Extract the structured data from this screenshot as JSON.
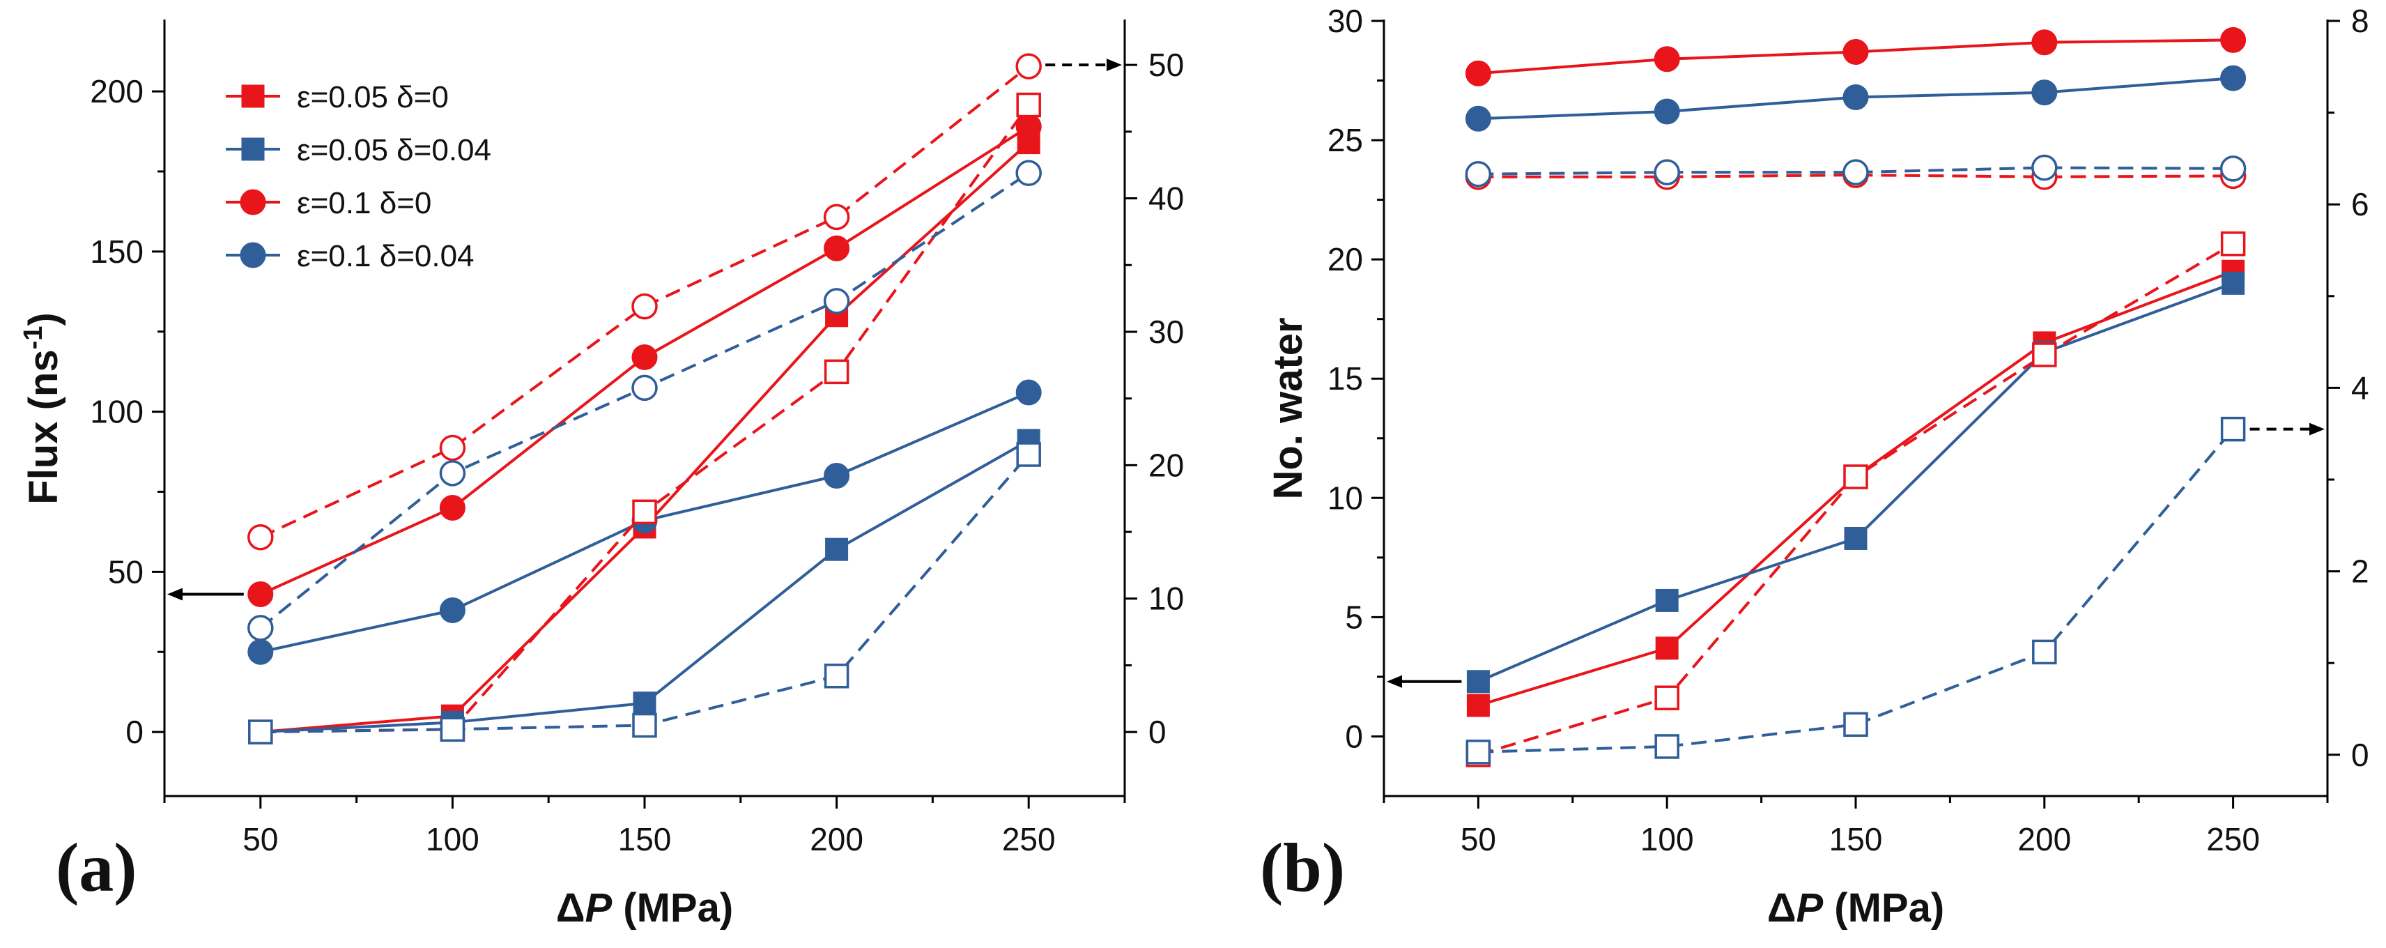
{
  "figure": {
    "colors": {
      "red": "#e8151b",
      "blue": "#2f5e99",
      "axis": "#000000"
    }
  },
  "chart_data": [
    {
      "type": "line",
      "panel_label": "(a)",
      "title": "",
      "xlabel": "ΔP (MPa)",
      "xlabel_parts": {
        "delta": "Δ",
        "var": "P",
        "unit": " (MPa)"
      },
      "ylabel": "Flux (ns-1)",
      "ylabel_parts": {
        "base": "Flux (ns",
        "sup": "-1",
        "close": ")"
      },
      "xlim": [
        25,
        275
      ],
      "ylim": [
        -20,
        222
      ],
      "y2lim": [
        -4.8,
        53.3
      ],
      "xticks": [
        "50",
        "100",
        "150",
        "200",
        "250"
      ],
      "yticks": [
        "0",
        "50",
        "100",
        "150",
        "200"
      ],
      "y2ticks": [
        "0",
        "10",
        "20",
        "30",
        "40",
        "50"
      ],
      "legend_position": "top-left",
      "legend": [
        "ε=0.05 δ=0",
        "ε=0.05 δ=0.04",
        "ε=0.1 δ=0",
        "ε=0.1 δ=0.04"
      ],
      "left_axis_arrow_at": 43,
      "right_axis_arrow_at": 50,
      "series": [
        {
          "name": "ε=0.05 δ=0",
          "color": "red",
          "marker": "square",
          "filled": true,
          "axis": "left",
          "x": [
            50,
            100,
            150,
            200,
            250
          ],
          "values": [
            0,
            5,
            64,
            130,
            184
          ]
        },
        {
          "name": "ε=0.05 δ=0.04",
          "color": "blue",
          "marker": "square",
          "filled": true,
          "axis": "left",
          "x": [
            50,
            100,
            150,
            200,
            250
          ],
          "values": [
            0,
            3,
            9,
            57,
            91
          ]
        },
        {
          "name": "ε=0.1 δ=0",
          "color": "red",
          "marker": "circle",
          "filled": true,
          "axis": "left",
          "x": [
            50,
            100,
            150,
            200,
            250
          ],
          "values": [
            43,
            70,
            117,
            151,
            189
          ]
        },
        {
          "name": "ε=0.1 δ=0.04",
          "color": "blue",
          "marker": "circle",
          "filled": true,
          "axis": "left",
          "x": [
            50,
            100,
            150,
            200,
            250
          ],
          "values": [
            25,
            38,
            66,
            80,
            106
          ]
        },
        {
          "name": "ε=0.05 δ=0 (right)",
          "color": "red",
          "marker": "square",
          "filled": false,
          "axis": "right",
          "x": [
            50,
            100,
            150,
            200,
            250
          ],
          "values": [
            0,
            0.2,
            16.5,
            27,
            47
          ]
        },
        {
          "name": "ε=0.05 δ=0.04 (right)",
          "color": "blue",
          "marker": "square",
          "filled": false,
          "axis": "right",
          "x": [
            50,
            100,
            150,
            200,
            250
          ],
          "values": [
            0,
            0.2,
            0.5,
            4.2,
            20.8
          ]
        },
        {
          "name": "ε=0.1 δ=0 (right)",
          "color": "red",
          "marker": "circle",
          "filled": false,
          "axis": "right",
          "x": [
            50,
            100,
            150,
            200,
            250
          ],
          "values": [
            14.6,
            21.3,
            31.9,
            38.6,
            49.9
          ]
        },
        {
          "name": "ε=0.1 δ=0.04 (right)",
          "color": "blue",
          "marker": "circle",
          "filled": false,
          "axis": "right",
          "x": [
            50,
            100,
            150,
            200,
            250
          ],
          "values": [
            7.8,
            19.4,
            25.8,
            32.3,
            41.9
          ]
        }
      ]
    },
    {
      "type": "line",
      "panel_label": "(b)",
      "title": "",
      "xlabel": "ΔP (MPa)",
      "xlabel_parts": {
        "delta": "Δ",
        "var": "P",
        "unit": " (MPa)"
      },
      "ylabel": "No. water",
      "xlim": [
        25,
        275
      ],
      "ylim": [
        -2.5,
        30
      ],
      "y2lim": [
        -0.45,
        8
      ],
      "xticks": [
        "50",
        "100",
        "150",
        "200",
        "250"
      ],
      "yticks": [
        "0",
        "5",
        "10",
        "15",
        "20",
        "25",
        "30"
      ],
      "y2ticks": [
        "0",
        "2",
        "4",
        "6",
        "8"
      ],
      "left_axis_arrow_at": 2.3,
      "right_axis_arrow_at": 3.55,
      "series": [
        {
          "name": "ε=0.05 δ=0",
          "color": "red",
          "marker": "square",
          "filled": true,
          "axis": "left",
          "x": [
            50,
            100,
            150,
            200,
            250
          ],
          "values": [
            1.3,
            3.7,
            10.9,
            16.5,
            19.5
          ]
        },
        {
          "name": "ε=0.05 δ=0.04",
          "color": "blue",
          "marker": "square",
          "filled": true,
          "axis": "left",
          "x": [
            50,
            100,
            150,
            200,
            250
          ],
          "values": [
            2.3,
            5.7,
            8.3,
            16.1,
            19.0
          ]
        },
        {
          "name": "ε=0.1 δ=0",
          "color": "red",
          "marker": "circle",
          "filled": true,
          "axis": "left",
          "x": [
            50,
            100,
            150,
            200,
            250
          ],
          "values": [
            27.8,
            28.4,
            28.7,
            29.1,
            29.2
          ]
        },
        {
          "name": "ε=0.1 δ=0.04",
          "color": "blue",
          "marker": "circle",
          "filled": true,
          "axis": "left",
          "x": [
            50,
            100,
            150,
            200,
            250
          ],
          "values": [
            25.9,
            26.2,
            26.8,
            27.0,
            27.6
          ]
        },
        {
          "name": "ε=0.05 δ=0 (right)",
          "color": "red",
          "marker": "square",
          "filled": false,
          "axis": "right",
          "x": [
            50,
            100,
            150,
            200,
            250
          ],
          "values": [
            0.0,
            0.62,
            3.03,
            4.36,
            5.57
          ]
        },
        {
          "name": "ε=0.05 δ=0.04 (right)",
          "color": "blue",
          "marker": "square",
          "filled": false,
          "axis": "right",
          "x": [
            50,
            100,
            150,
            200,
            250
          ],
          "values": [
            0.03,
            0.09,
            0.33,
            1.12,
            3.55
          ]
        },
        {
          "name": "ε=0.1 δ=0 (right)",
          "color": "red",
          "marker": "circle",
          "filled": false,
          "axis": "right",
          "x": [
            50,
            100,
            150,
            200,
            250
          ],
          "values": [
            6.3,
            6.3,
            6.32,
            6.3,
            6.31
          ]
        },
        {
          "name": "ε=0.1 δ=0.04 (right)",
          "color": "blue",
          "marker": "circle",
          "filled": false,
          "axis": "right",
          "x": [
            50,
            100,
            150,
            200,
            250
          ],
          "values": [
            6.33,
            6.35,
            6.35,
            6.4,
            6.39
          ]
        }
      ]
    }
  ]
}
